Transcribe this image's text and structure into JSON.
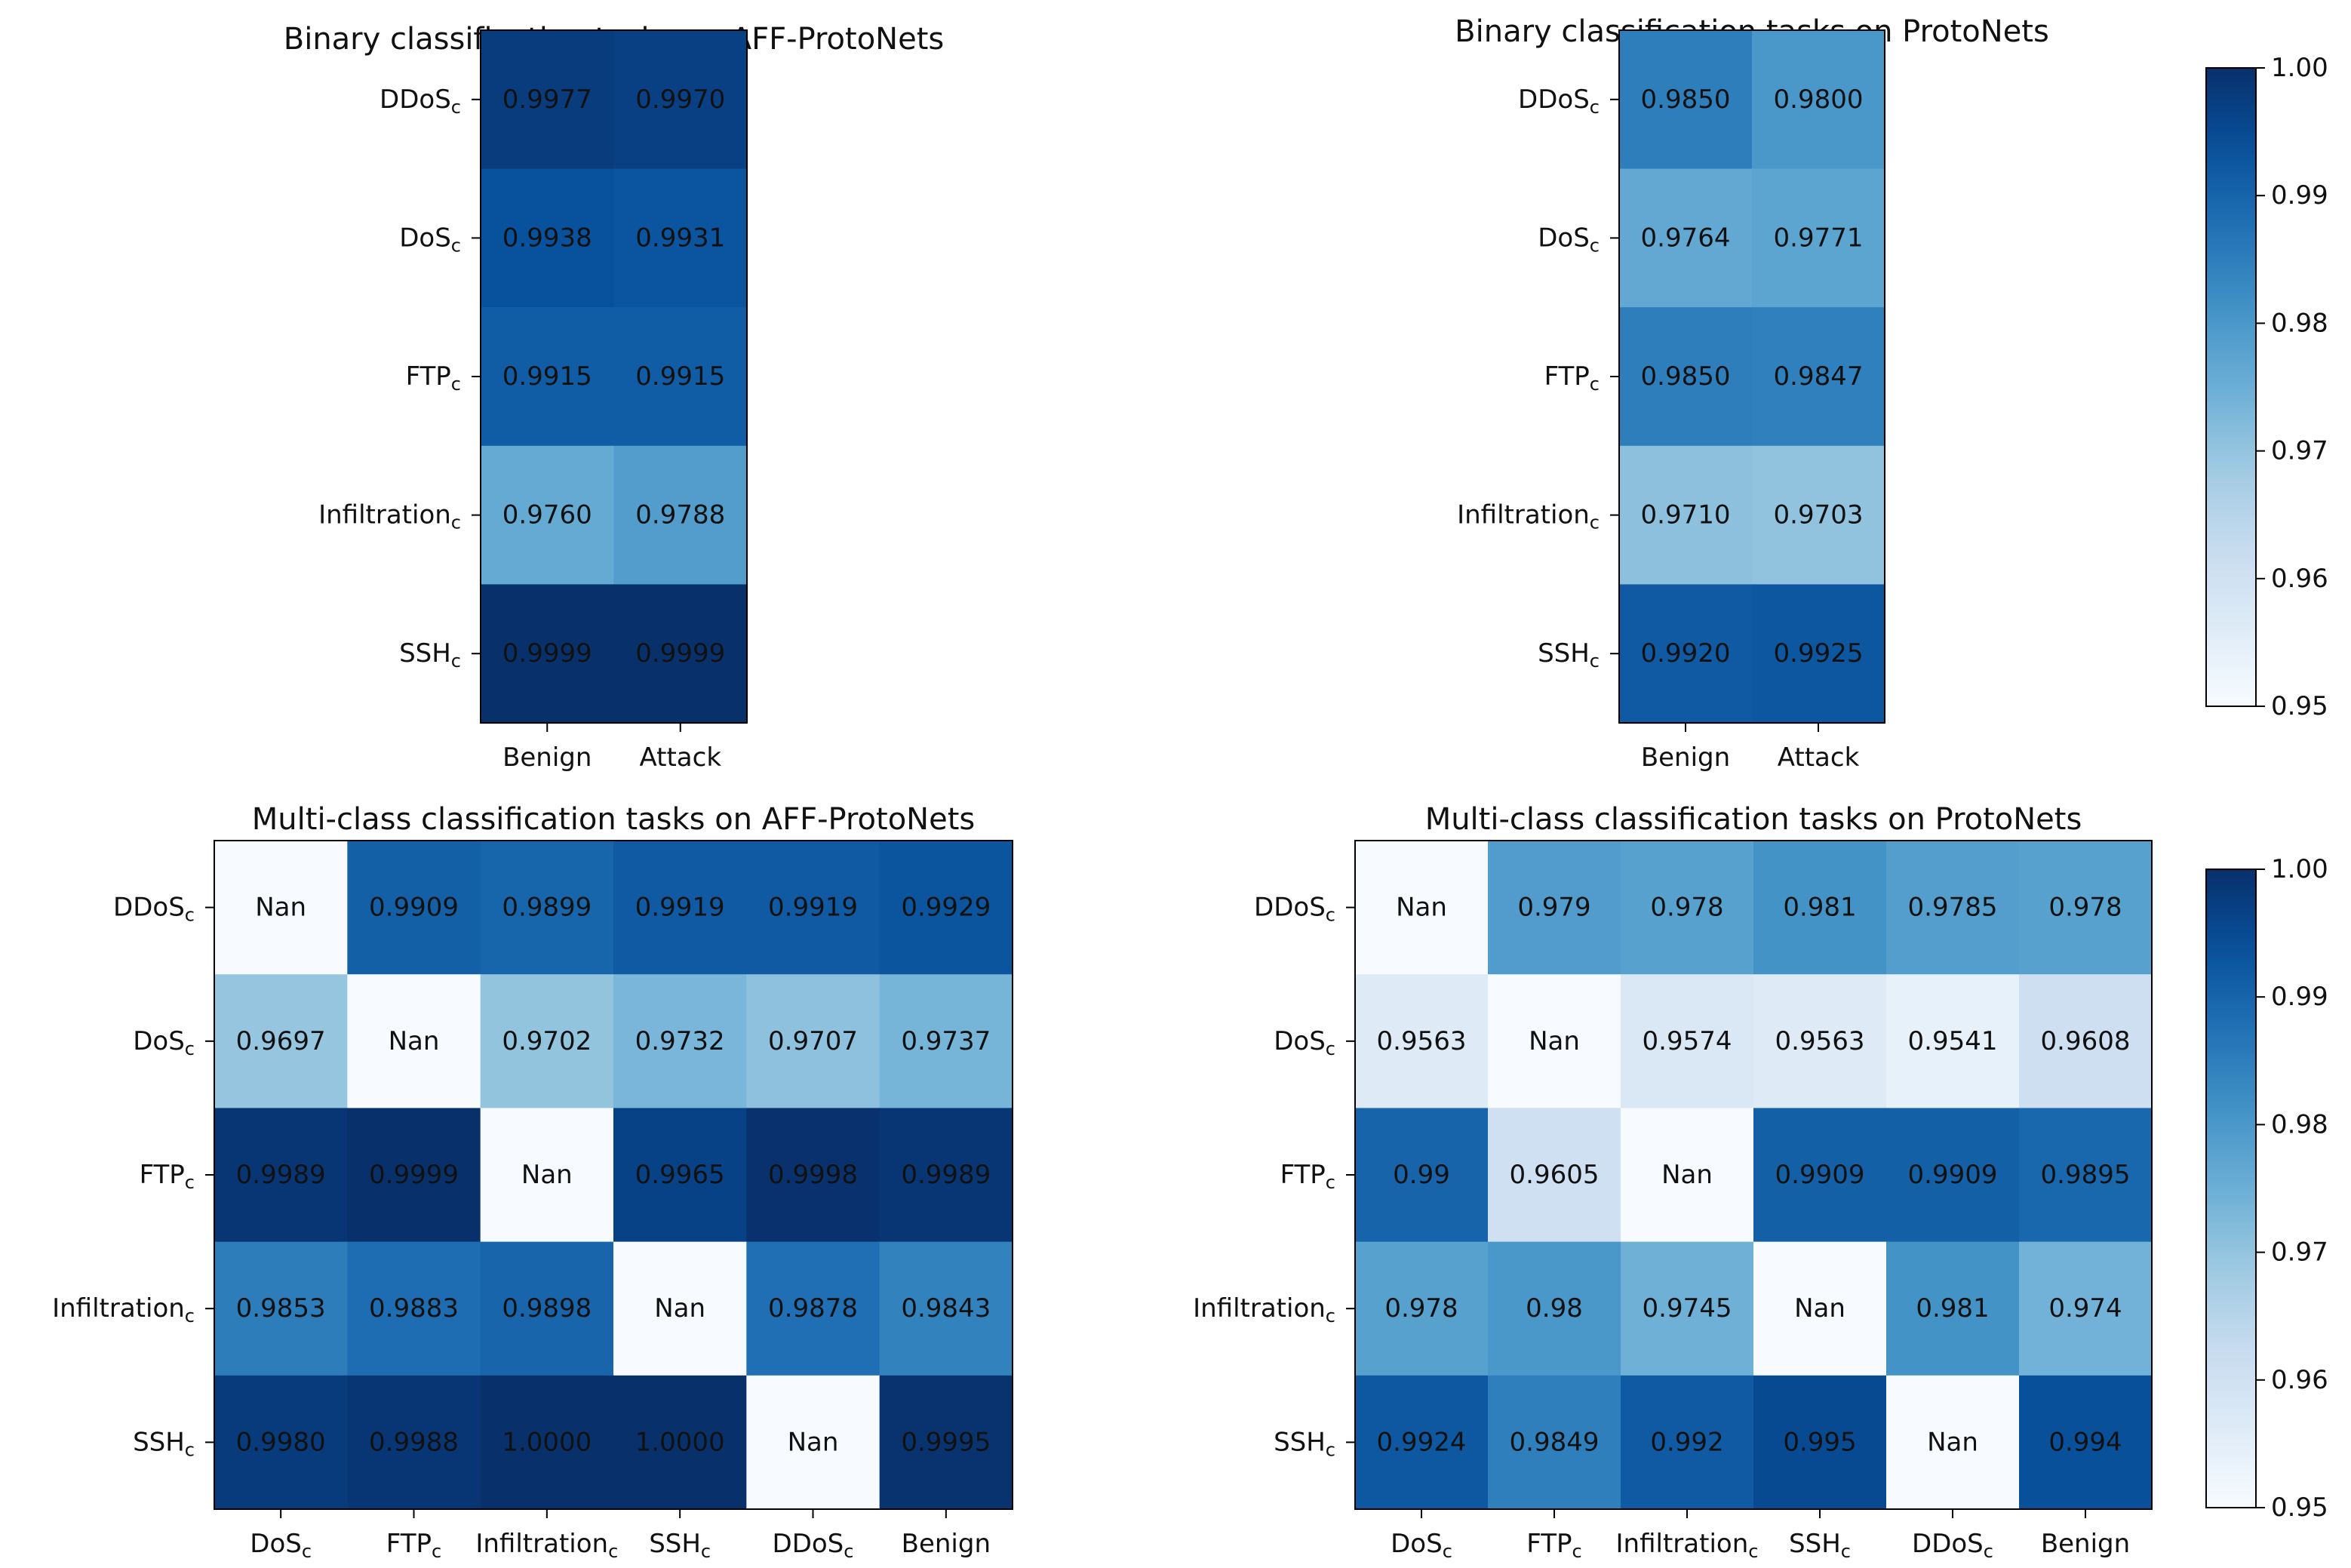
{
  "colormap": [
    "#f7fbff",
    "#deebf7",
    "#c6dbef",
    "#9ecae1",
    "#6baed6",
    "#4292c6",
    "#2171b5",
    "#08519c",
    "#08306b"
  ],
  "chart_data": [
    {
      "type": "heatmap",
      "title": "Binary classification tasks on AFF-ProtoNets",
      "rows": [
        "DDoS",
        "DoS",
        "FTP",
        "Infiltration",
        "SSH"
      ],
      "row_subscript": "c",
      "columns": [
        "Benign",
        "Attack"
      ],
      "col_subscript": "",
      "values": [
        [
          0.9977,
          0.997
        ],
        [
          0.9938,
          0.9931
        ],
        [
          0.9915,
          0.9915
        ],
        [
          0.976,
          0.9788
        ],
        [
          0.9999,
          0.9999
        ]
      ],
      "labels": [
        [
          "0.9977",
          "0.9970"
        ],
        [
          "0.9938",
          "0.9931"
        ],
        [
          "0.9915",
          "0.9915"
        ],
        [
          "0.9760",
          "0.9788"
        ],
        [
          "0.9999",
          "0.9999"
        ]
      ],
      "vmin": 0.95,
      "vmax": 1.0
    },
    {
      "type": "heatmap",
      "title": "Binary classification tasks on ProtoNets",
      "rows": [
        "DDoS",
        "DoS",
        "FTP",
        "Infiltration",
        "SSH"
      ],
      "row_subscript": "c",
      "columns": [
        "Benign",
        "Attack"
      ],
      "col_subscript": "",
      "values": [
        [
          0.985,
          0.98
        ],
        [
          0.9764,
          0.9771
        ],
        [
          0.985,
          0.9847
        ],
        [
          0.971,
          0.9703
        ],
        [
          0.992,
          0.9925
        ]
      ],
      "labels": [
        [
          "0.9850",
          "0.9800"
        ],
        [
          "0.9764",
          "0.9771"
        ],
        [
          "0.9850",
          "0.9847"
        ],
        [
          "0.9710",
          "0.9703"
        ],
        [
          "0.9920",
          "0.9925"
        ]
      ],
      "vmin": 0.95,
      "vmax": 1.0
    },
    {
      "type": "heatmap",
      "title": "Multi-class classification tasks on AFF-ProtoNets",
      "rows": [
        "DDoS",
        "DoS",
        "FTP",
        "Infiltration",
        "SSH"
      ],
      "row_subscript": "c",
      "columns": [
        "DoS",
        "FTP",
        "Infiltration",
        "SSH",
        "DDoS",
        "Benign"
      ],
      "col_subscript": "c",
      "col_subscript_mask": [
        true,
        true,
        true,
        true,
        true,
        false
      ],
      "values": [
        [
          null,
          0.9909,
          0.9899,
          0.9919,
          0.9919,
          0.9929
        ],
        [
          0.9697,
          null,
          0.9702,
          0.9732,
          0.9707,
          0.9737
        ],
        [
          0.9989,
          0.9999,
          null,
          0.9965,
          0.9998,
          0.9989
        ],
        [
          0.9853,
          0.9883,
          0.9898,
          null,
          0.9878,
          0.9843
        ],
        [
          0.998,
          0.9988,
          1.0,
          1.0,
          null,
          0.9995
        ]
      ],
      "labels": [
        [
          "Nan",
          "0.9909",
          "0.9899",
          "0.9919",
          "0.9919",
          "0.9929"
        ],
        [
          "0.9697",
          "Nan",
          "0.9702",
          "0.9732",
          "0.9707",
          "0.9737"
        ],
        [
          "0.9989",
          "0.9999",
          "Nan",
          "0.9965",
          "0.9998",
          "0.9989"
        ],
        [
          "0.9853",
          "0.9883",
          "0.9898",
          "Nan",
          "0.9878",
          "0.9843"
        ],
        [
          "0.9980",
          "0.9988",
          "1.0000",
          "1.0000",
          "Nan",
          "0.9995"
        ]
      ],
      "vmin": 0.95,
      "vmax": 1.0
    },
    {
      "type": "heatmap",
      "title": "Multi-class classification tasks on ProtoNets",
      "rows": [
        "DDoS",
        "DoS",
        "FTP",
        "Infiltration",
        "SSH"
      ],
      "row_subscript": "c",
      "columns": [
        "DoS",
        "FTP",
        "Infiltration",
        "SSH",
        "DDoS",
        "Benign"
      ],
      "col_subscript": "c",
      "col_subscript_mask": [
        true,
        true,
        true,
        true,
        true,
        false
      ],
      "values": [
        [
          null,
          0.979,
          0.978,
          0.981,
          0.9785,
          0.978
        ],
        [
          0.9563,
          null,
          0.9574,
          0.9563,
          0.9541,
          0.9608
        ],
        [
          0.99,
          0.9605,
          null,
          0.9909,
          0.9909,
          0.9895
        ],
        [
          0.978,
          0.98,
          0.9745,
          null,
          0.981,
          0.974
        ],
        [
          0.9924,
          0.9849,
          0.992,
          0.995,
          null,
          0.994
        ]
      ],
      "labels": [
        [
          "Nan",
          "0.979",
          "0.978",
          "0.981",
          "0.9785",
          "0.978"
        ],
        [
          "0.9563",
          "Nan",
          "0.9574",
          "0.9563",
          "0.9541",
          "0.9608"
        ],
        [
          "0.99",
          "0.9605",
          "Nan",
          "0.9909",
          "0.9909",
          "0.9895"
        ],
        [
          "0.978",
          "0.98",
          "0.9745",
          "Nan",
          "0.981",
          "0.974"
        ],
        [
          "0.9924",
          "0.9849",
          "0.992",
          "0.995",
          "Nan",
          "0.994"
        ]
      ],
      "vmin": 0.95,
      "vmax": 1.0
    }
  ],
  "colorbars": [
    {
      "ticks": [
        0.95,
        0.96,
        0.97,
        0.98,
        0.99,
        1.0
      ],
      "tick_labels": [
        "0.95",
        "0.96",
        "0.97",
        "0.98",
        "0.99",
        "1.00"
      ]
    },
    {
      "ticks": [
        0.95,
        0.96,
        0.97,
        0.98,
        0.99,
        1.0
      ],
      "tick_labels": [
        "0.95",
        "0.96",
        "0.97",
        "0.98",
        "0.99",
        "1.00"
      ]
    }
  ]
}
